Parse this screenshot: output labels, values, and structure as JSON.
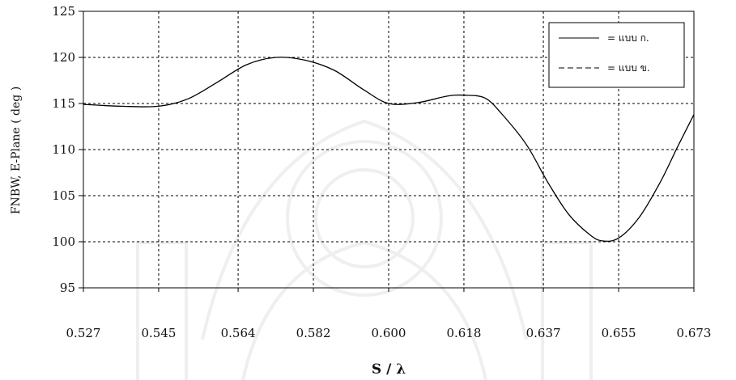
{
  "chart_data": {
    "type": "line",
    "title": "",
    "xlabel": "S / λ",
    "ylabel": "FNBW, E-Plane ( deg )",
    "x_ticks": [
      "0.527",
      "0.545",
      "0.564",
      "0.582",
      "0.600",
      "0.618",
      "0.637",
      "0.655",
      "0.673"
    ],
    "y_ticks": [
      "125",
      "120",
      "115",
      "110",
      "105",
      "100",
      "95"
    ],
    "ylim": [
      95,
      125
    ],
    "grid": true,
    "legend_position": "top-right",
    "series": [
      {
        "name": "= แบบ ก.",
        "style": "solid",
        "points": [
          [
            0.527,
            114.9
          ],
          [
            0.536,
            114.7
          ],
          [
            0.545,
            114.7
          ],
          [
            0.552,
            115.5
          ],
          [
            0.559,
            117.3
          ],
          [
            0.566,
            119.2
          ],
          [
            0.573,
            120.0
          ],
          [
            0.58,
            119.7
          ],
          [
            0.587,
            118.6
          ],
          [
            0.594,
            116.5
          ],
          [
            0.6,
            115.0
          ],
          [
            0.607,
            115.1
          ],
          [
            0.614,
            115.8
          ],
          [
            0.618,
            115.9
          ],
          [
            0.623,
            115.6
          ],
          [
            0.627,
            113.9
          ],
          [
            0.633,
            110.5
          ],
          [
            0.638,
            106.5
          ],
          [
            0.643,
            103.0
          ],
          [
            0.648,
            100.8
          ],
          [
            0.651,
            100.1
          ],
          [
            0.655,
            100.4
          ],
          [
            0.66,
            102.7
          ],
          [
            0.665,
            106.5
          ],
          [
            0.669,
            110.2
          ],
          [
            0.673,
            113.8
          ]
        ]
      },
      {
        "name": "= แบบ ข.",
        "style": "dashed",
        "points": []
      }
    ]
  }
}
